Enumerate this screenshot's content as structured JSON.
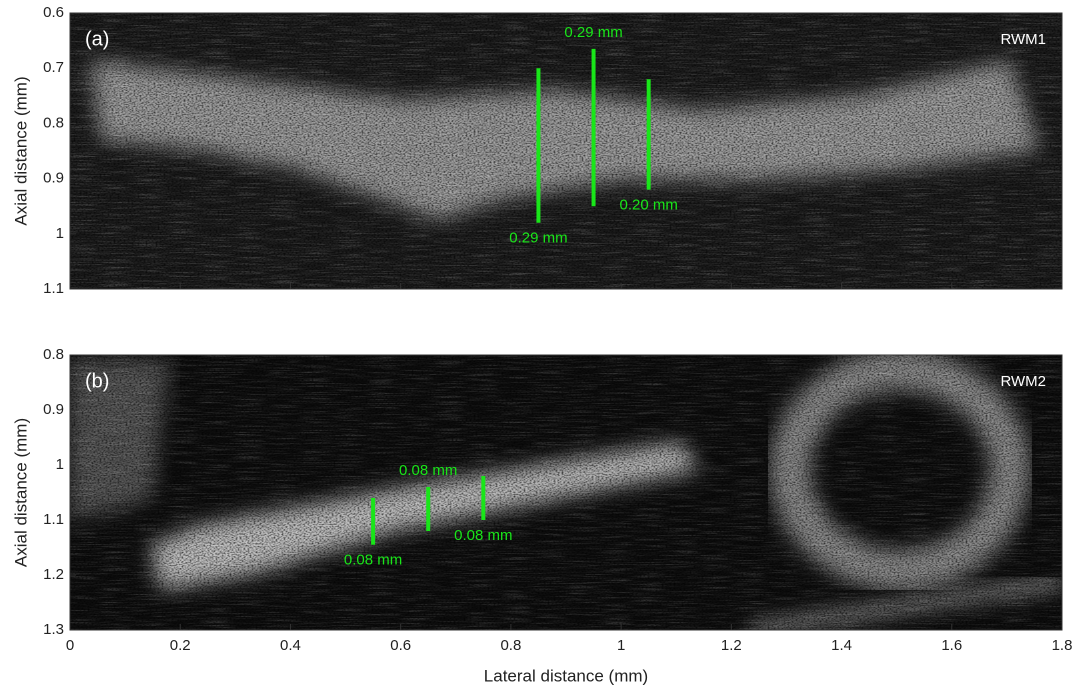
{
  "chart_data": [
    {
      "type": "image",
      "panel_label": "(a)",
      "annotation": "RWM1",
      "ylabel": "Axial distance (mm)",
      "xlim": [
        0,
        1.8
      ],
      "xticks": [
        0,
        0.2,
        0.4,
        0.6,
        0.8,
        1,
        1.2,
        1.4,
        1.6,
        1.8
      ],
      "show_xtick_labels": false,
      "ylim": [
        0.6,
        1.1
      ],
      "yticks": [
        0.6,
        0.7,
        0.8,
        0.9,
        1,
        1.1
      ],
      "reverse_y": true,
      "measure_color": "#19e619",
      "measurements": [
        {
          "text": "0.29 mm",
          "x": 0.85,
          "y": [
            0.7,
            0.98
          ],
          "label_side": "below"
        },
        {
          "text": "0.29 mm",
          "x": 0.95,
          "y": [
            0.665,
            0.95
          ],
          "label_side": "above"
        },
        {
          "text": "0.20 mm",
          "x": 1.05,
          "y": [
            0.72,
            0.92
          ],
          "label_side": "below"
        }
      ]
    },
    {
      "type": "image",
      "panel_label": "(b)",
      "annotation": "RWM2",
      "ylabel": "Axial distance (mm)",
      "xlabel": "Lateral distance (mm)",
      "xlim": [
        0,
        1.8
      ],
      "xticks": [
        0,
        0.2,
        0.4,
        0.6,
        0.8,
        1,
        1.2,
        1.4,
        1.6,
        1.8
      ],
      "show_xtick_labels": true,
      "ylim": [
        0.8,
        1.3
      ],
      "yticks": [
        0.8,
        0.9,
        1,
        1.1,
        1.2,
        1.3
      ],
      "reverse_y": true,
      "measure_color": "#19e619",
      "measurements": [
        {
          "text": "0.08 mm",
          "x": 0.55,
          "y": [
            1.06,
            1.145
          ],
          "label_side": "below"
        },
        {
          "text": "0.08 mm",
          "x": 0.65,
          "y": [
            1.04,
            1.12
          ],
          "label_side": "above"
        },
        {
          "text": "0.08 mm",
          "x": 0.75,
          "y": [
            1.02,
            1.1
          ],
          "label_side": "below"
        }
      ]
    }
  ]
}
